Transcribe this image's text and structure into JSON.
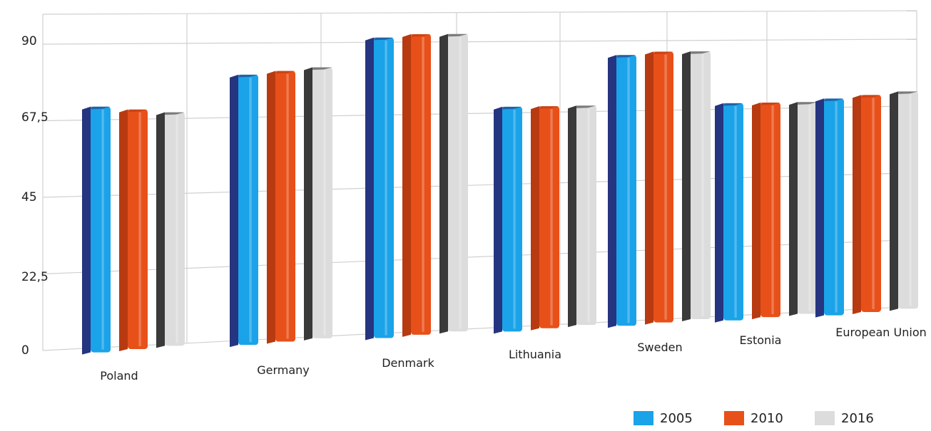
{
  "chart_data": {
    "type": "bar",
    "categories": [
      "Poland",
      "Germany",
      "Denmark",
      "Lithuania",
      "Sweden",
      "Estonia",
      "European Union"
    ],
    "series": [
      {
        "name": "2005",
        "values": [
          71,
          80,
          91,
          69,
          85,
          69,
          70
        ]
      },
      {
        "name": "2010",
        "values": [
          70,
          81,
          92,
          69,
          86,
          69,
          71
        ]
      },
      {
        "name": "2016",
        "values": [
          69,
          82,
          92,
          69,
          86,
          69,
          72
        ]
      }
    ],
    "yticks": [
      "0",
      "22,5",
      "45",
      "67,5",
      "90"
    ],
    "ylim": [
      0,
      90
    ],
    "grid": true,
    "legend_position": "bottom-right",
    "colors": {
      "2005": "#1aa3e8",
      "2005_side": "#263580",
      "2010": "#e8501a",
      "2010_side": "#b83a10",
      "2016": "#dcdcdc",
      "2016_side": "#3a3a3a",
      "grid": "#d0d0d0"
    }
  }
}
